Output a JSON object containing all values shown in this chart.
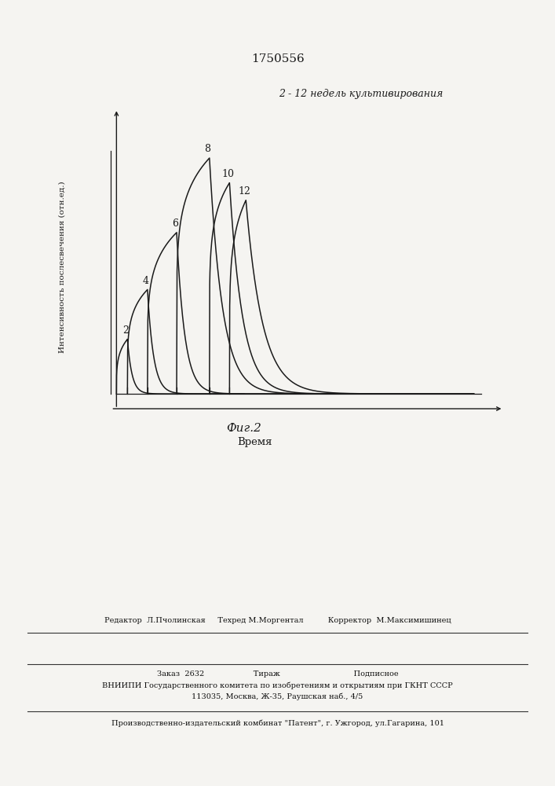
{
  "title": "1750556",
  "fig_label": "Фиг.2",
  "annotation_top": "2 - 12 недель культивирования",
  "ylabel": "Интенсивность послесвечения (отн.ед.)",
  "xlabel": "Время",
  "background_color": "#f5f4f1",
  "line_color": "#1a1a1a",
  "footer_line1": "Редактор  Л.Пчолинская     Техред М.Моргентал          Корректор  М.Максимишинец",
  "footer_line2": "Заказ  2632                    Тираж                              Подписное",
  "footer_line3": "ВНИИПИ Государственного комитета по изобретениям и открытиям при ГКНТ СССР",
  "footer_line4": "113035, Москва, Ж-35, Раушская наб., 4/5",
  "footer_line5": "Производственно-издательский комбинат \"Патент\", г. Ужгород, ул.Гагарина, 101"
}
